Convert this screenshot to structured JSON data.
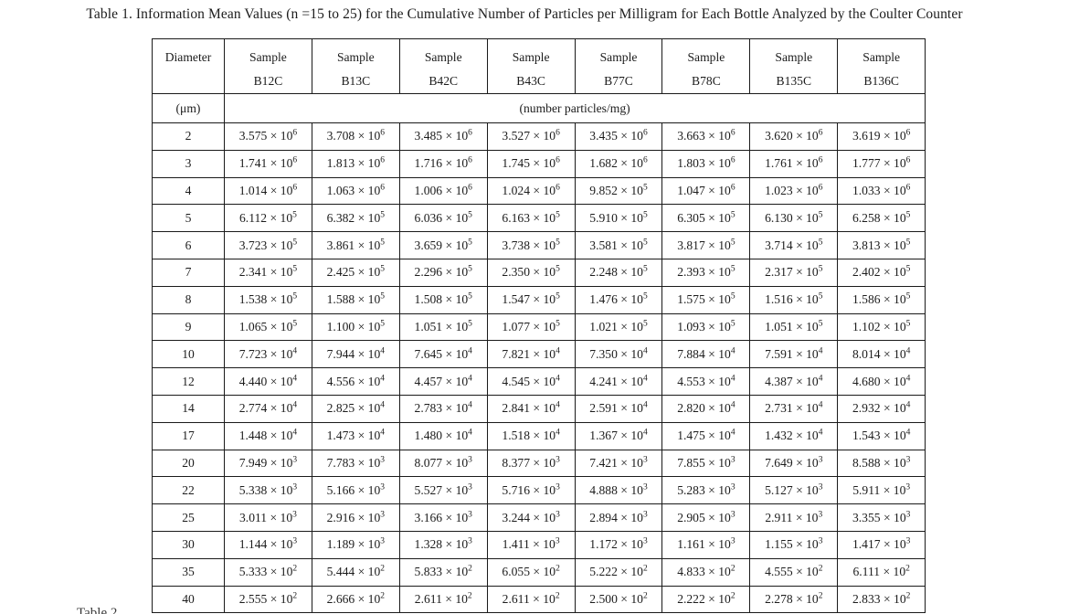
{
  "title": "Table 1.  Information Mean Values (n =15 to 25) for the Cumulative Number of Particles per Milligram for Each Bottle Analyzed by the Coulter Counter",
  "bottom_partial_caption": "Table 2.",
  "table": {
    "header": {
      "diameter_label": "Diameter",
      "diameter_unit": "(μm)",
      "sample_label": "Sample",
      "sample_ids": [
        "B12C",
        "B13C",
        "B42C",
        "B43C",
        "B77C",
        "B78C",
        "B135C",
        "B136C"
      ],
      "values_unit": "(number particles/mg)"
    },
    "rows": [
      {
        "diameter": "2",
        "values": [
          "3.575 × 10^6",
          "3.708 × 10^6",
          "3.485 × 10^6",
          "3.527 × 10^6",
          "3.435 × 10^6",
          "3.663 × 10^6",
          "3.620 × 10^6",
          "3.619 × 10^6"
        ]
      },
      {
        "diameter": "3",
        "values": [
          "1.741 × 10^6",
          "1.813 × 10^6",
          "1.716 × 10^6",
          "1.745 × 10^6",
          "1.682 × 10^6",
          "1.803 × 10^6",
          "1.761 × 10^6",
          "1.777 × 10^6"
        ]
      },
      {
        "diameter": "4",
        "values": [
          "1.014 × 10^6",
          "1.063 × 10^6",
          "1.006 × 10^6",
          "1.024 × 10^6",
          "9.852 × 10^5",
          "1.047 × 10^6",
          "1.023 × 10^6",
          "1.033 × 10^6"
        ]
      },
      {
        "diameter": "5",
        "values": [
          "6.112 × 10^5",
          "6.382 × 10^5",
          "6.036 × 10^5",
          "6.163 × 10^5",
          "5.910 × 10^5",
          "6.305 × 10^5",
          "6.130 × 10^5",
          "6.258 × 10^5"
        ]
      },
      {
        "diameter": "6",
        "values": [
          "3.723 × 10^5",
          "3.861 × 10^5",
          "3.659 × 10^5",
          "3.738 × 10^5",
          "3.581 × 10^5",
          "3.817 × 10^5",
          "3.714 × 10^5",
          "3.813 × 10^5"
        ]
      },
      {
        "diameter": "7",
        "values": [
          "2.341 × 10^5",
          "2.425 × 10^5",
          "2.296 × 10^5",
          "2.350 × 10^5",
          "2.248 × 10^5",
          "2.393 × 10^5",
          "2.317 × 10^5",
          "2.402 × 10^5"
        ]
      },
      {
        "diameter": "8",
        "values": [
          "1.538 × 10^5",
          "1.588 × 10^5",
          "1.508 × 10^5",
          "1.547 × 10^5",
          "1.476 × 10^5",
          "1.575 × 10^5",
          "1.516 × 10^5",
          "1.586 × 10^5"
        ]
      },
      {
        "diameter": "9",
        "values": [
          "1.065 × 10^5",
          "1.100 × 10^5",
          "1.051 × 10^5",
          "1.077 × 10^5",
          "1.021 × 10^5",
          "1.093 × 10^5",
          "1.051 × 10^5",
          "1.102 × 10^5"
        ]
      },
      {
        "diameter": "10",
        "values": [
          "7.723 × 10^4",
          "7.944 × 10^4",
          "7.645 × 10^4",
          "7.821 × 10^4",
          "7.350 × 10^4",
          "7.884 × 10^4",
          "7.591 × 10^4",
          "8.014 × 10^4"
        ]
      },
      {
        "diameter": "12",
        "values": [
          "4.440 × 10^4",
          "4.556 × 10^4",
          "4.457 × 10^4",
          "4.545 × 10^4",
          "4.241 × 10^4",
          "4.553 × 10^4",
          "4.387 × 10^4",
          "4.680 × 10^4"
        ]
      },
      {
        "diameter": "14",
        "values": [
          "2.774 × 10^4",
          "2.825 × 10^4",
          "2.783 × 10^4",
          "2.841 × 10^4",
          "2.591 × 10^4",
          "2.820 × 10^4",
          "2.731 × 10^4",
          "2.932 × 10^4"
        ]
      },
      {
        "diameter": "17",
        "values": [
          "1.448 × 10^4",
          "1.473 × 10^4",
          "1.480 × 10^4",
          "1.518 × 10^4",
          "1.367 × 10^4",
          "1.475 × 10^4",
          "1.432 × 10^4",
          "1.543 × 10^4"
        ]
      },
      {
        "diameter": "20",
        "values": [
          "7.949 × 10^3",
          "7.783 × 10^3",
          "8.077 × 10^3",
          "8.377 × 10^3",
          "7.421 × 10^3",
          "7.855 × 10^3",
          "7.649 × 10^3",
          "8.588 × 10^3"
        ]
      },
      {
        "diameter": "22",
        "values": [
          "5.338 × 10^3",
          "5.166 × 10^3",
          "5.527 × 10^3",
          "5.716 × 10^3",
          "4.888 × 10^3",
          "5.283 × 10^3",
          "5.127 × 10^3",
          "5.911 × 10^3"
        ]
      },
      {
        "diameter": "25",
        "values": [
          "3.011 × 10^3",
          "2.916 × 10^3",
          "3.166 × 10^3",
          "3.244 × 10^3",
          "2.894 × 10^3",
          "2.905 × 10^3",
          "2.911 × 10^3",
          "3.355 × 10^3"
        ]
      },
      {
        "diameter": "30",
        "values": [
          "1.144 × 10^3",
          "1.189 × 10^3",
          "1.328 × 10^3",
          "1.411 × 10^3",
          "1.172 × 10^3",
          "1.161 × 10^3",
          "1.155 × 10^3",
          "1.417 × 10^3"
        ]
      },
      {
        "diameter": "35",
        "values": [
          "5.333 × 10^2",
          "5.444 × 10^2",
          "5.833 × 10^2",
          "6.055 × 10^2",
          "5.222 × 10^2",
          "4.833 × 10^2",
          "4.555 × 10^2",
          "6.111 × 10^2"
        ]
      },
      {
        "diameter": "40",
        "values": [
          "2.555 × 10^2",
          "2.666 × 10^2",
          "2.611 × 10^2",
          "2.611 × 10^2",
          "2.500 × 10^2",
          "2.222 × 10^2",
          "2.278 × 10^2",
          "2.833 × 10^2"
        ]
      }
    ]
  }
}
